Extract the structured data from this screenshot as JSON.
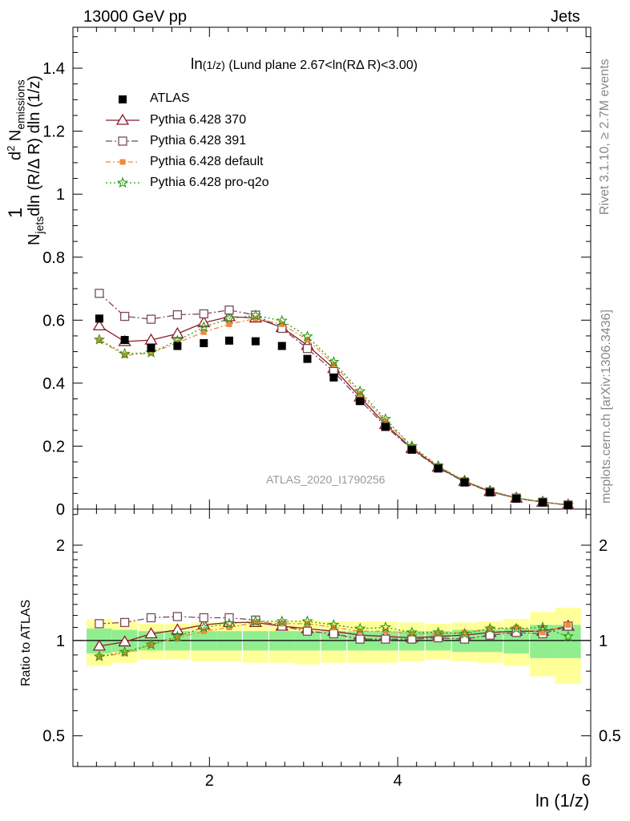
{
  "header": {
    "left": "13000 GeV pp",
    "right": "Jets"
  },
  "side_labels": {
    "rivet": "Rivet 3.1.10, ≥ 2.7M events",
    "mcplots": "mcplots.cern.ch [arXiv:1306.3436]"
  },
  "watermark": "ATLAS_2020_I1790256",
  "plot_title": {
    "main": "ln",
    "sub": "(1/z)",
    "rest": " (Lund plane 2.67<ln(RΔ R)<3.00)"
  },
  "ylabel": {
    "num_one": "1",
    "n_jets": "N",
    "n_jets_sub": "jets",
    "n_jets_rest": "dln (R/Δ R) dln (1/z)",
    "d2": "d",
    "d2_sup": "2",
    "n_em": " N",
    "n_em_sub": "emissions"
  },
  "xlabel": "ln (1/z)",
  "ratio_ylabel": "Ratio to ATLAS",
  "legend": {
    "atlas": "ATLAS",
    "p370": "Pythia 6.428 370",
    "p391": "Pythia 6.428 391",
    "pdefault": "Pythia 6.428 default",
    "pq2o": "Pythia 6.428 pro-q2o"
  },
  "colors": {
    "atlas": "#000000",
    "p370": "#8b1a2b",
    "p391": "#7a4a5a",
    "pdefault": "#f08a3c",
    "pq2o": "#2a9a10",
    "band_inner": "#90ee90",
    "band_outer": "#ffff99"
  },
  "chart_data": [
    {
      "type": "line",
      "title": "ln(1/z) (Lund plane 2.67<ln(RΔ R)<3.00)",
      "xlabel": "ln (1/z)",
      "ylabel": "1/N_jets d²N_emissions / dln(R/ΔR) dln(1/z)",
      "xlim": [
        0.55,
        6.05
      ],
      "ylim": [
        0,
        1.53
      ],
      "xticks": [
        2,
        4,
        6
      ],
      "yticks": [
        0,
        0.2,
        0.4,
        0.6,
        0.8,
        1,
        1.2,
        1.4
      ],
      "x": [
        0.83,
        1.1,
        1.38,
        1.66,
        1.94,
        2.21,
        2.49,
        2.77,
        3.04,
        3.32,
        3.6,
        3.87,
        4.15,
        4.43,
        4.71,
        4.98,
        5.26,
        5.54,
        5.81
      ],
      "series": [
        {
          "name": "ATLAS",
          "values": [
            0.605,
            0.537,
            0.512,
            0.518,
            0.527,
            0.535,
            0.533,
            0.518,
            0.477,
            0.418,
            0.343,
            0.261,
            0.189,
            0.129,
            0.085,
            0.053,
            0.033,
            0.021,
            0.012
          ]
        },
        {
          "name": "Pythia 6.428 370",
          "values": [
            0.582,
            0.532,
            0.537,
            0.557,
            0.592,
            0.611,
            0.607,
            0.577,
            0.52,
            0.447,
            0.356,
            0.269,
            0.193,
            0.133,
            0.088,
            0.056,
            0.035,
            0.022,
            0.013
          ]
        },
        {
          "name": "Pythia 6.428 391",
          "values": [
            0.685,
            0.612,
            0.603,
            0.617,
            0.62,
            0.632,
            0.616,
            0.574,
            0.51,
            0.437,
            0.346,
            0.263,
            0.19,
            0.131,
            0.086,
            0.055,
            0.035,
            0.022,
            0.013
          ]
        },
        {
          "name": "Pythia 6.428 default",
          "values": [
            0.536,
            0.488,
            0.496,
            0.528,
            0.562,
            0.587,
            0.605,
            0.587,
            0.538,
            0.46,
            0.366,
            0.279,
            0.198,
            0.136,
            0.09,
            0.058,
            0.036,
            0.022,
            0.013
          ]
        },
        {
          "name": "Pythia 6.428 pro-q2o",
          "values": [
            0.538,
            0.493,
            0.497,
            0.535,
            0.578,
            0.605,
            0.615,
            0.598,
            0.548,
            0.467,
            0.374,
            0.286,
            0.2,
            0.137,
            0.088,
            0.058,
            0.036,
            0.023,
            0.013
          ]
        }
      ]
    },
    {
      "type": "line",
      "title": "",
      "xlabel": "ln (1/z)",
      "ylabel": "Ratio to ATLAS",
      "xlim": [
        0.55,
        6.05
      ],
      "ylim": [
        0.4,
        2.6
      ],
      "ylog": true,
      "yticks": [
        0.5,
        1,
        2
      ],
      "x": [
        0.83,
        1.1,
        1.38,
        1.66,
        1.94,
        2.21,
        2.49,
        2.77,
        3.04,
        3.32,
        3.6,
        3.87,
        4.15,
        4.43,
        4.71,
        4.98,
        5.26,
        5.54,
        5.81
      ],
      "band_inner_half_width": [
        0.09,
        0.08,
        0.07,
        0.07,
        0.07,
        0.07,
        0.07,
        0.07,
        0.07,
        0.07,
        0.07,
        0.07,
        0.07,
        0.07,
        0.08,
        0.08,
        0.09,
        0.12,
        0.12
      ],
      "band_outer_half_width": [
        0.17,
        0.15,
        0.13,
        0.13,
        0.14,
        0.14,
        0.15,
        0.15,
        0.16,
        0.15,
        0.15,
        0.15,
        0.14,
        0.13,
        0.14,
        0.15,
        0.17,
        0.23,
        0.27
      ],
      "series": [
        {
          "name": "Pythia 6.428 370",
          "values": [
            0.96,
            0.99,
            1.05,
            1.08,
            1.12,
            1.14,
            1.14,
            1.11,
            1.09,
            1.07,
            1.04,
            1.03,
            1.02,
            1.03,
            1.04,
            1.06,
            1.07,
            1.07,
            1.11
          ]
        },
        {
          "name": "Pythia 6.428 391",
          "values": [
            1.13,
            1.14,
            1.18,
            1.19,
            1.18,
            1.18,
            1.16,
            1.11,
            1.07,
            1.05,
            1.01,
            1.01,
            1.01,
            1.02,
            1.01,
            1.04,
            1.06,
            1.05,
            1.11
          ]
        },
        {
          "name": "Pythia 6.428 default",
          "values": [
            0.89,
            0.91,
            0.97,
            1.02,
            1.07,
            1.1,
            1.14,
            1.13,
            1.13,
            1.1,
            1.07,
            1.07,
            1.05,
            1.05,
            1.06,
            1.09,
            1.1,
            1.06,
            1.12
          ]
        },
        {
          "name": "Pythia 6.428 pro-q2o",
          "values": [
            0.89,
            0.92,
            0.97,
            1.03,
            1.1,
            1.13,
            1.15,
            1.15,
            1.15,
            1.12,
            1.09,
            1.1,
            1.06,
            1.06,
            1.05,
            1.09,
            1.09,
            1.1,
            1.03
          ]
        }
      ]
    }
  ]
}
